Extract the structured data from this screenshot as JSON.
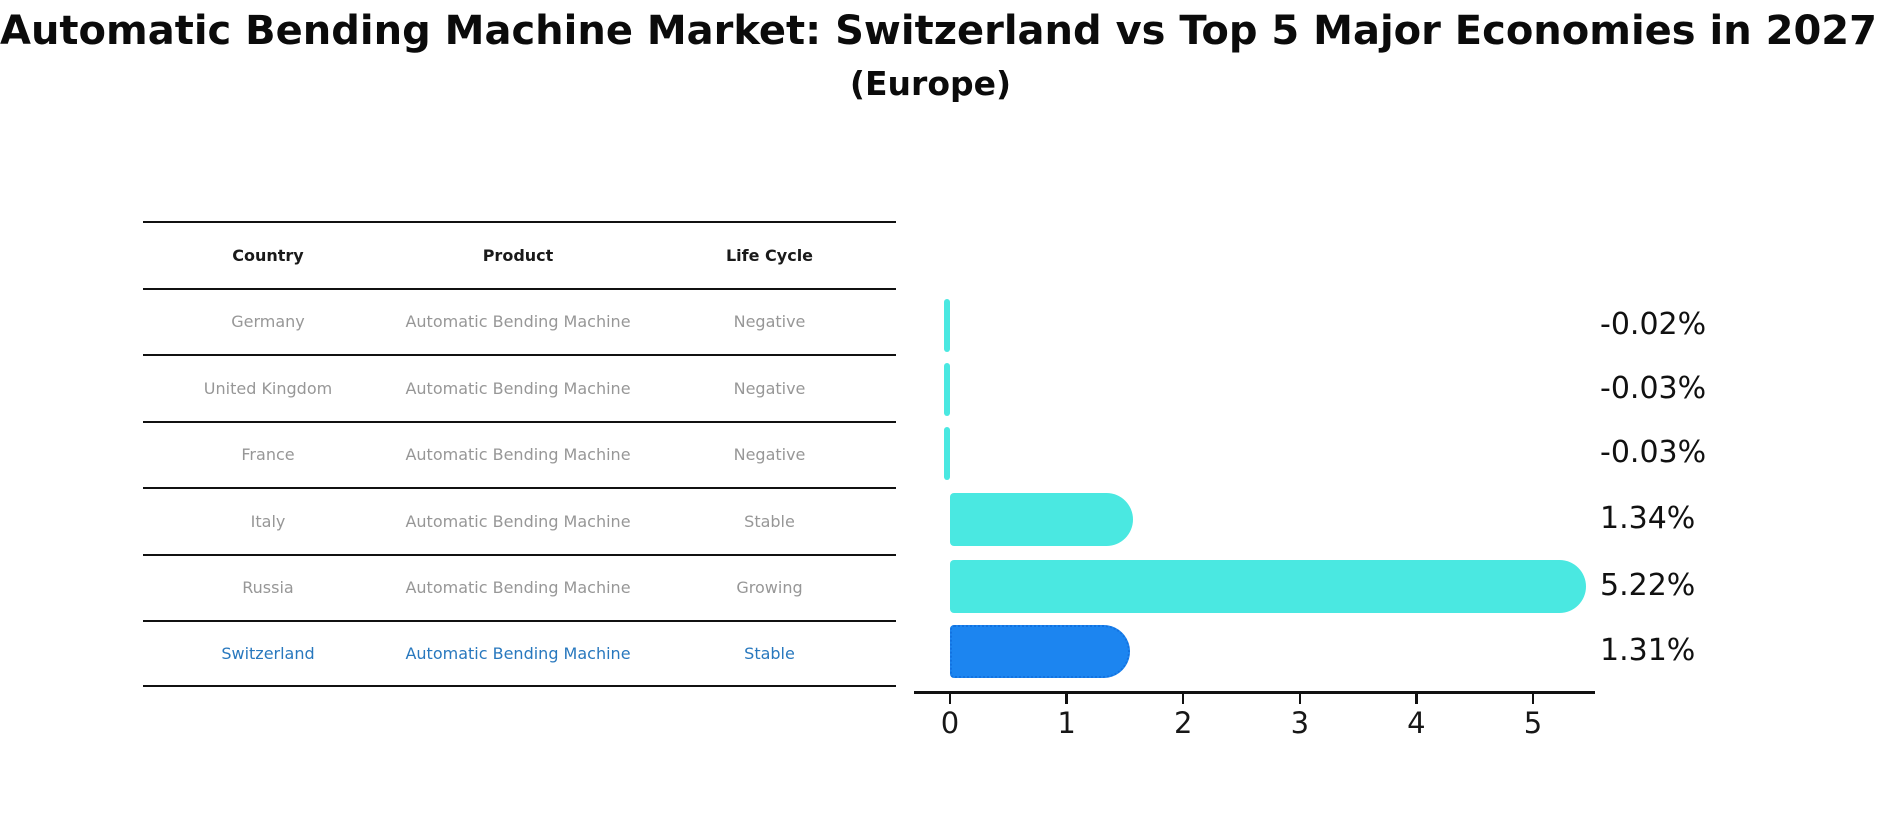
{
  "title": "Automatic Bending Machine Market: Switzerland vs Top 5 Major Economies in 2027",
  "subtitle": "(Europe)",
  "colors": {
    "bar_cyan": "#4AE8E1",
    "bar_blue": "#1C85F0",
    "highlight_text": "#2878BE",
    "table_text": "#979797",
    "axis_text": "#171717"
  },
  "table": {
    "headers": [
      "Country",
      "Product",
      "Life Cycle"
    ],
    "rows": [
      {
        "country": "Germany",
        "product": "Automatic Bending Machine",
        "life_cycle": "Negative"
      },
      {
        "country": "United Kingdom",
        "product": "Automatic Bending Machine",
        "life_cycle": "Negative"
      },
      {
        "country": "France",
        "product": "Automatic Bending Machine",
        "life_cycle": "Negative"
      },
      {
        "country": "Italy",
        "product": "Automatic Bending Machine",
        "life_cycle": "Stable"
      },
      {
        "country": "Russia",
        "product": "Automatic Bending Machine",
        "life_cycle": "Growing"
      },
      {
        "country": "Switzerland",
        "product": "Automatic Bending Machine",
        "life_cycle": "Stable"
      }
    ],
    "highlighted_row": "Switzerland"
  },
  "chart_data": {
    "type": "bar",
    "orientation": "horizontal",
    "title": "Automatic Bending Machine Market: Switzerland vs Top 5 Major Economies in 2027 (Europe)",
    "categories": [
      "Germany",
      "United Kingdom",
      "France",
      "Italy",
      "Russia",
      "Switzerland"
    ],
    "values": [
      -0.02,
      -0.03,
      -0.03,
      1.34,
      5.22,
      1.31
    ],
    "value_labels": [
      "-0.02%",
      "-0.03%",
      "-0.03%",
      "1.34%",
      "5.22%",
      "1.31%"
    ],
    "x_ticks": [
      0,
      1,
      2,
      3,
      4,
      5
    ],
    "x_tick_labels": [
      "0",
      "1",
      "2",
      "3",
      "4",
      "5"
    ],
    "xlim": [
      -0.31,
      5.52
    ],
    "grid": false,
    "legend": false,
    "highlight_category": "Switzerland"
  }
}
